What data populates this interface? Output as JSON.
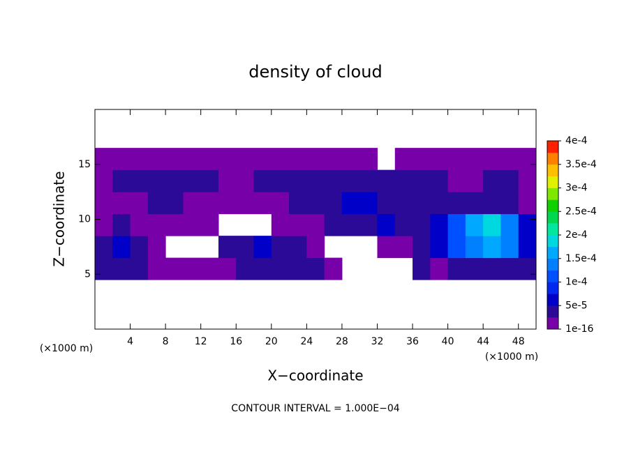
{
  "chart_data": {
    "type": "heatmap",
    "title": "density of cloud",
    "xlabel": "X−coordinate",
    "ylabel": "Z−coordinate",
    "x_unit": "(×1000 m)",
    "note": "CONTOUR INTERVAL = 1.000E−04",
    "xlim": [
      0,
      50
    ],
    "xticks": [
      4,
      8,
      12,
      16,
      20,
      24,
      28,
      32,
      36,
      40,
      44,
      48
    ],
    "ylim": [
      0,
      20
    ],
    "yticks": [
      5,
      10,
      15
    ],
    "x": [
      1,
      3,
      5,
      7,
      9,
      11,
      13,
      15,
      17,
      19,
      21,
      23,
      25,
      27,
      29,
      31,
      33,
      35,
      37,
      39,
      41,
      43,
      45,
      47,
      49
    ],
    "y": [
      5.5,
      7.5,
      9.5,
      11.5,
      13.5,
      15.5
    ],
    "z": [
      [
        3e-05,
        4e-05,
        3e-05,
        1e-05,
        1e-05,
        1e-05,
        1e-05,
        2e-05,
        4e-05,
        5e-05,
        5e-05,
        4e-05,
        3e-05,
        1e-05,
        null,
        null,
        null,
        null,
        3e-05,
        2e-05,
        4e-05,
        5e-05,
        5e-05,
        4e-05,
        5e-05
      ],
      [
        4e-05,
        6e-05,
        5e-05,
        2e-05,
        null,
        null,
        null,
        3e-05,
        5e-05,
        6e-05,
        5e-05,
        4e-05,
        2e-05,
        null,
        null,
        null,
        1e-05,
        2e-05,
        3e-05,
        6e-05,
        0.00012,
        0.00015,
        0.00016,
        0.00014,
        6e-05
      ],
      [
        1e-05,
        3e-05,
        2e-05,
        1e-05,
        1e-05,
        1e-05,
        1e-05,
        null,
        null,
        null,
        1e-05,
        2e-05,
        2e-05,
        3e-05,
        4e-05,
        5e-05,
        6e-05,
        4e-05,
        3e-05,
        6e-05,
        0.00012,
        0.00017,
        0.00018,
        0.00015,
        7e-05
      ],
      [
        2e-05,
        2e-05,
        2e-05,
        3e-05,
        3e-05,
        2e-05,
        2e-05,
        2e-05,
        2e-05,
        2e-05,
        2e-05,
        3e-05,
        4e-05,
        5e-05,
        6e-05,
        6e-05,
        5e-05,
        4e-05,
        3e-05,
        3e-05,
        4e-05,
        5e-05,
        5e-05,
        4e-05,
        2e-05
      ],
      [
        2e-05,
        3e-05,
        3e-05,
        4e-05,
        5e-05,
        4e-05,
        3e-05,
        2e-05,
        2e-05,
        3e-05,
        3e-05,
        4e-05,
        4e-05,
        3e-05,
        3e-05,
        3e-05,
        4e-05,
        4e-05,
        4e-05,
        3e-05,
        2e-05,
        2e-05,
        3e-05,
        3e-05,
        2e-05
      ],
      [
        1e-05,
        1e-05,
        2e-05,
        2e-05,
        2e-05,
        1e-05,
        1e-05,
        1e-05,
        2e-05,
        2e-05,
        1e-05,
        1e-05,
        1e-05,
        1e-05,
        1e-05,
        1e-05,
        null,
        1e-05,
        1e-05,
        1e-05,
        2e-05,
        2e-05,
        1e-05,
        1e-05,
        1e-05
      ]
    ],
    "clim": [
      1e-16,
      0.0004
    ],
    "cticks": [
      {
        "value": 1e-16,
        "label": "1e-16"
      },
      {
        "value": 5e-05,
        "label": "5e-5"
      },
      {
        "value": 0.0001,
        "label": "1e-4"
      },
      {
        "value": 0.00015,
        "label": "1.5e-4"
      },
      {
        "value": 0.0002,
        "label": "2e-4"
      },
      {
        "value": 0.00025,
        "label": "2.5e-4"
      },
      {
        "value": 0.0003,
        "label": "3e-4"
      },
      {
        "value": 0.00035,
        "label": "3.5e-4"
      },
      {
        "value": 0.0004,
        "label": "4e-4"
      }
    ],
    "colors": [
      "#7800a8",
      "#2a0a96",
      "#0000c8",
      "#0028f0",
      "#0050ff",
      "#0080ff",
      "#00a8ff",
      "#00d8e0",
      "#00e8a0",
      "#00d850",
      "#10d000",
      "#80e800",
      "#e0f000",
      "#ffc000",
      "#ff8000",
      "#ff2000"
    ]
  }
}
